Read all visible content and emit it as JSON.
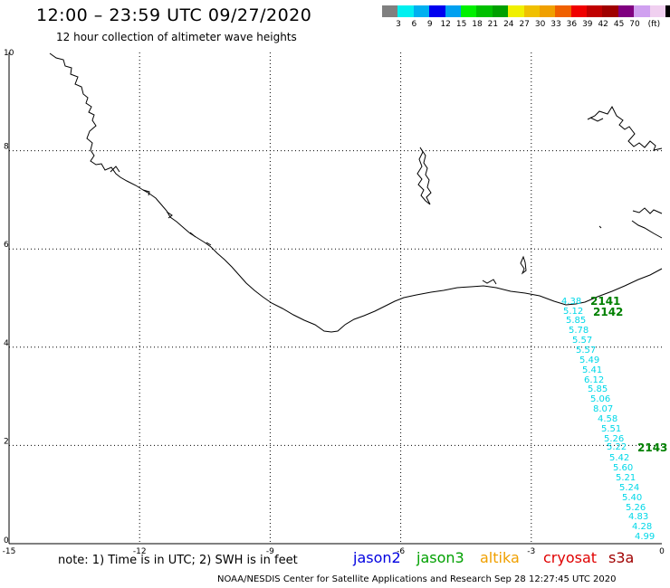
{
  "header": {
    "title": "12:00 – 23:59 UTC 09/27/2020",
    "subtitle": "12 hour collection of altimeter wave heights"
  },
  "colorbar": {
    "colors": [
      "#808080",
      "#00f0f0",
      "#00b0f0",
      "#0000f0",
      "#00a0f0",
      "#00f000",
      "#00c000",
      "#00a000",
      "#f0f000",
      "#f0c000",
      "#f0a000",
      "#f06000",
      "#f00000",
      "#c00000",
      "#a00000",
      "#800080",
      "#d0a0f0",
      "#f0d0f0",
      "#000000"
    ],
    "labels": [
      "3",
      "6",
      "9",
      "12",
      "15",
      "18",
      "21",
      "24",
      "27",
      "30",
      "33",
      "36",
      "39",
      "42",
      "45",
      "70",
      "(ft)"
    ]
  },
  "axes": {
    "x_ticks": [
      "-15",
      "-12",
      "-9",
      "-6",
      "-3",
      "0"
    ],
    "y_ticks": [
      "0",
      "2",
      "4",
      "6",
      "8",
      "10"
    ]
  },
  "track_labels": [
    "2141",
    "2142",
    "2143"
  ],
  "swh_values": [
    "4.38",
    "5.12",
    "5.85",
    "5.78",
    "5.57",
    "5.57",
    "5.49",
    "5.41",
    "6.12",
    "5.85",
    "5.06",
    "8.07",
    "4.58",
    "5.51",
    "5.26",
    "5.22",
    "5.42",
    "5.60",
    "5.21",
    "5.24",
    "5.40",
    "5.26",
    "4.83",
    "4.28",
    "4.99"
  ],
  "note": "note:  1) Time is in UTC;  2) SWH is in feet",
  "legend": [
    {
      "name": "jason2",
      "color": "#0000e0"
    },
    {
      "name": "jason3",
      "color": "#00a000"
    },
    {
      "name": "altika",
      "color": "#f0a000"
    },
    {
      "name": "cryosat",
      "color": "#e00000"
    },
    {
      "name": "s3a",
      "color": "#a00000"
    }
  ],
  "credit": "NOAA/NESDIS Center for Satellite Applications and Research     Sep 28 12:27:45 UTC 2020",
  "colors": {
    "swh_text": "#00d8e8",
    "track_label": "#008000"
  }
}
